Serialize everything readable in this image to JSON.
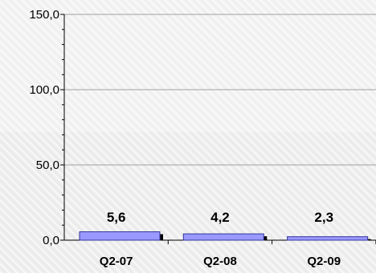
{
  "chart_data": {
    "type": "bar",
    "categories": [
      "Q2-07",
      "Q2-08",
      "Q2-09"
    ],
    "values": [
      5.6,
      4.2,
      2.3
    ],
    "data_labels": [
      "5,6",
      "4,2",
      "2,3"
    ],
    "y_tick_values": [
      0,
      50,
      100,
      150
    ],
    "y_tick_labels": [
      "0,0",
      "50,0",
      "100,0",
      "150,0"
    ],
    "ylim": [
      0,
      150
    ],
    "title": "",
    "xlabel": "",
    "ylabel": "",
    "grid": true,
    "legend": "none",
    "bar_color": "#9999ff",
    "bar_edge_color": "#333399",
    "bar_shadow_color": "#000000",
    "gridline_color": "#a0a0a0",
    "axis_color": "#000000"
  }
}
